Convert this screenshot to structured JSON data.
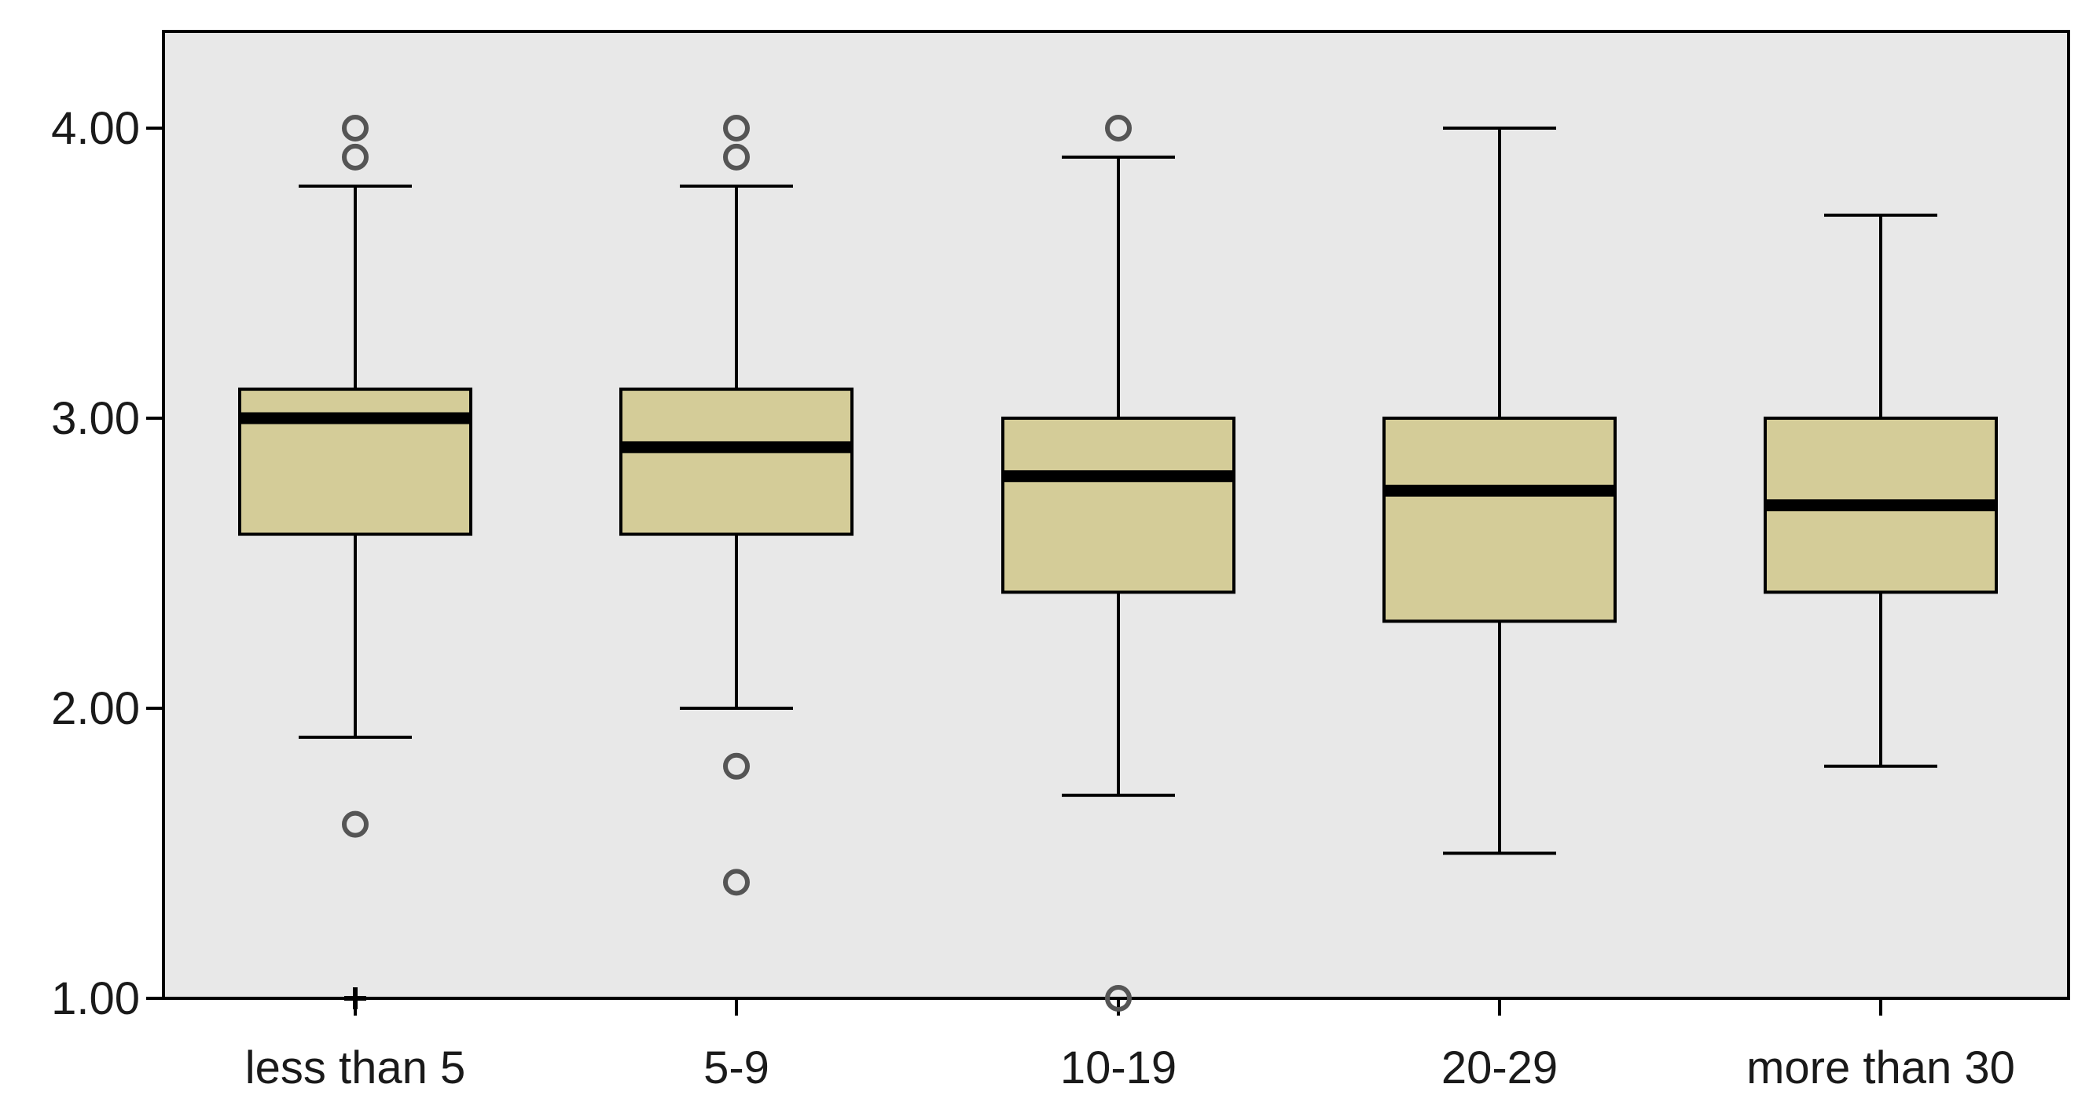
{
  "chart_data": {
    "type": "box",
    "title": "",
    "xlabel": "",
    "ylabel": "",
    "ylim": [
      1.0,
      4.3
    ],
    "y_ticks": [
      "1.00",
      "2.00",
      "3.00",
      "4.00"
    ],
    "y_tick_values": [
      1.0,
      2.0,
      3.0,
      4.0
    ],
    "grid": false,
    "colors": {
      "plot_bg": "#e8e8e8",
      "box_fill": "#d4cc98",
      "stroke": "#000000",
      "outlier": "#555555"
    },
    "categories": [
      "less than 5",
      "5-9",
      "10-19",
      "20-29",
      "more than 30"
    ],
    "boxes": [
      {
        "whisker_low": 1.9,
        "q1": 2.6,
        "median": 3.0,
        "q3": 3.1,
        "whisker_high": 3.8,
        "outliers": [
          4.0,
          3.9,
          1.6
        ],
        "extremes": [
          1.0
        ]
      },
      {
        "whisker_low": 2.0,
        "q1": 2.6,
        "median": 2.9,
        "q3": 3.1,
        "whisker_high": 3.8,
        "outliers": [
          4.0,
          3.9,
          1.8,
          1.4
        ],
        "extremes": []
      },
      {
        "whisker_low": 1.7,
        "q1": 2.4,
        "median": 2.8,
        "q3": 3.0,
        "whisker_high": 3.9,
        "outliers": [
          4.0,
          1.0
        ],
        "extremes": []
      },
      {
        "whisker_low": 1.5,
        "q1": 2.3,
        "median": 2.75,
        "q3": 3.0,
        "whisker_high": 4.0,
        "outliers": [],
        "extremes": []
      },
      {
        "whisker_low": 1.8,
        "q1": 2.4,
        "median": 2.7,
        "q3": 3.0,
        "whisker_high": 3.7,
        "outliers": [],
        "extremes": []
      }
    ]
  }
}
